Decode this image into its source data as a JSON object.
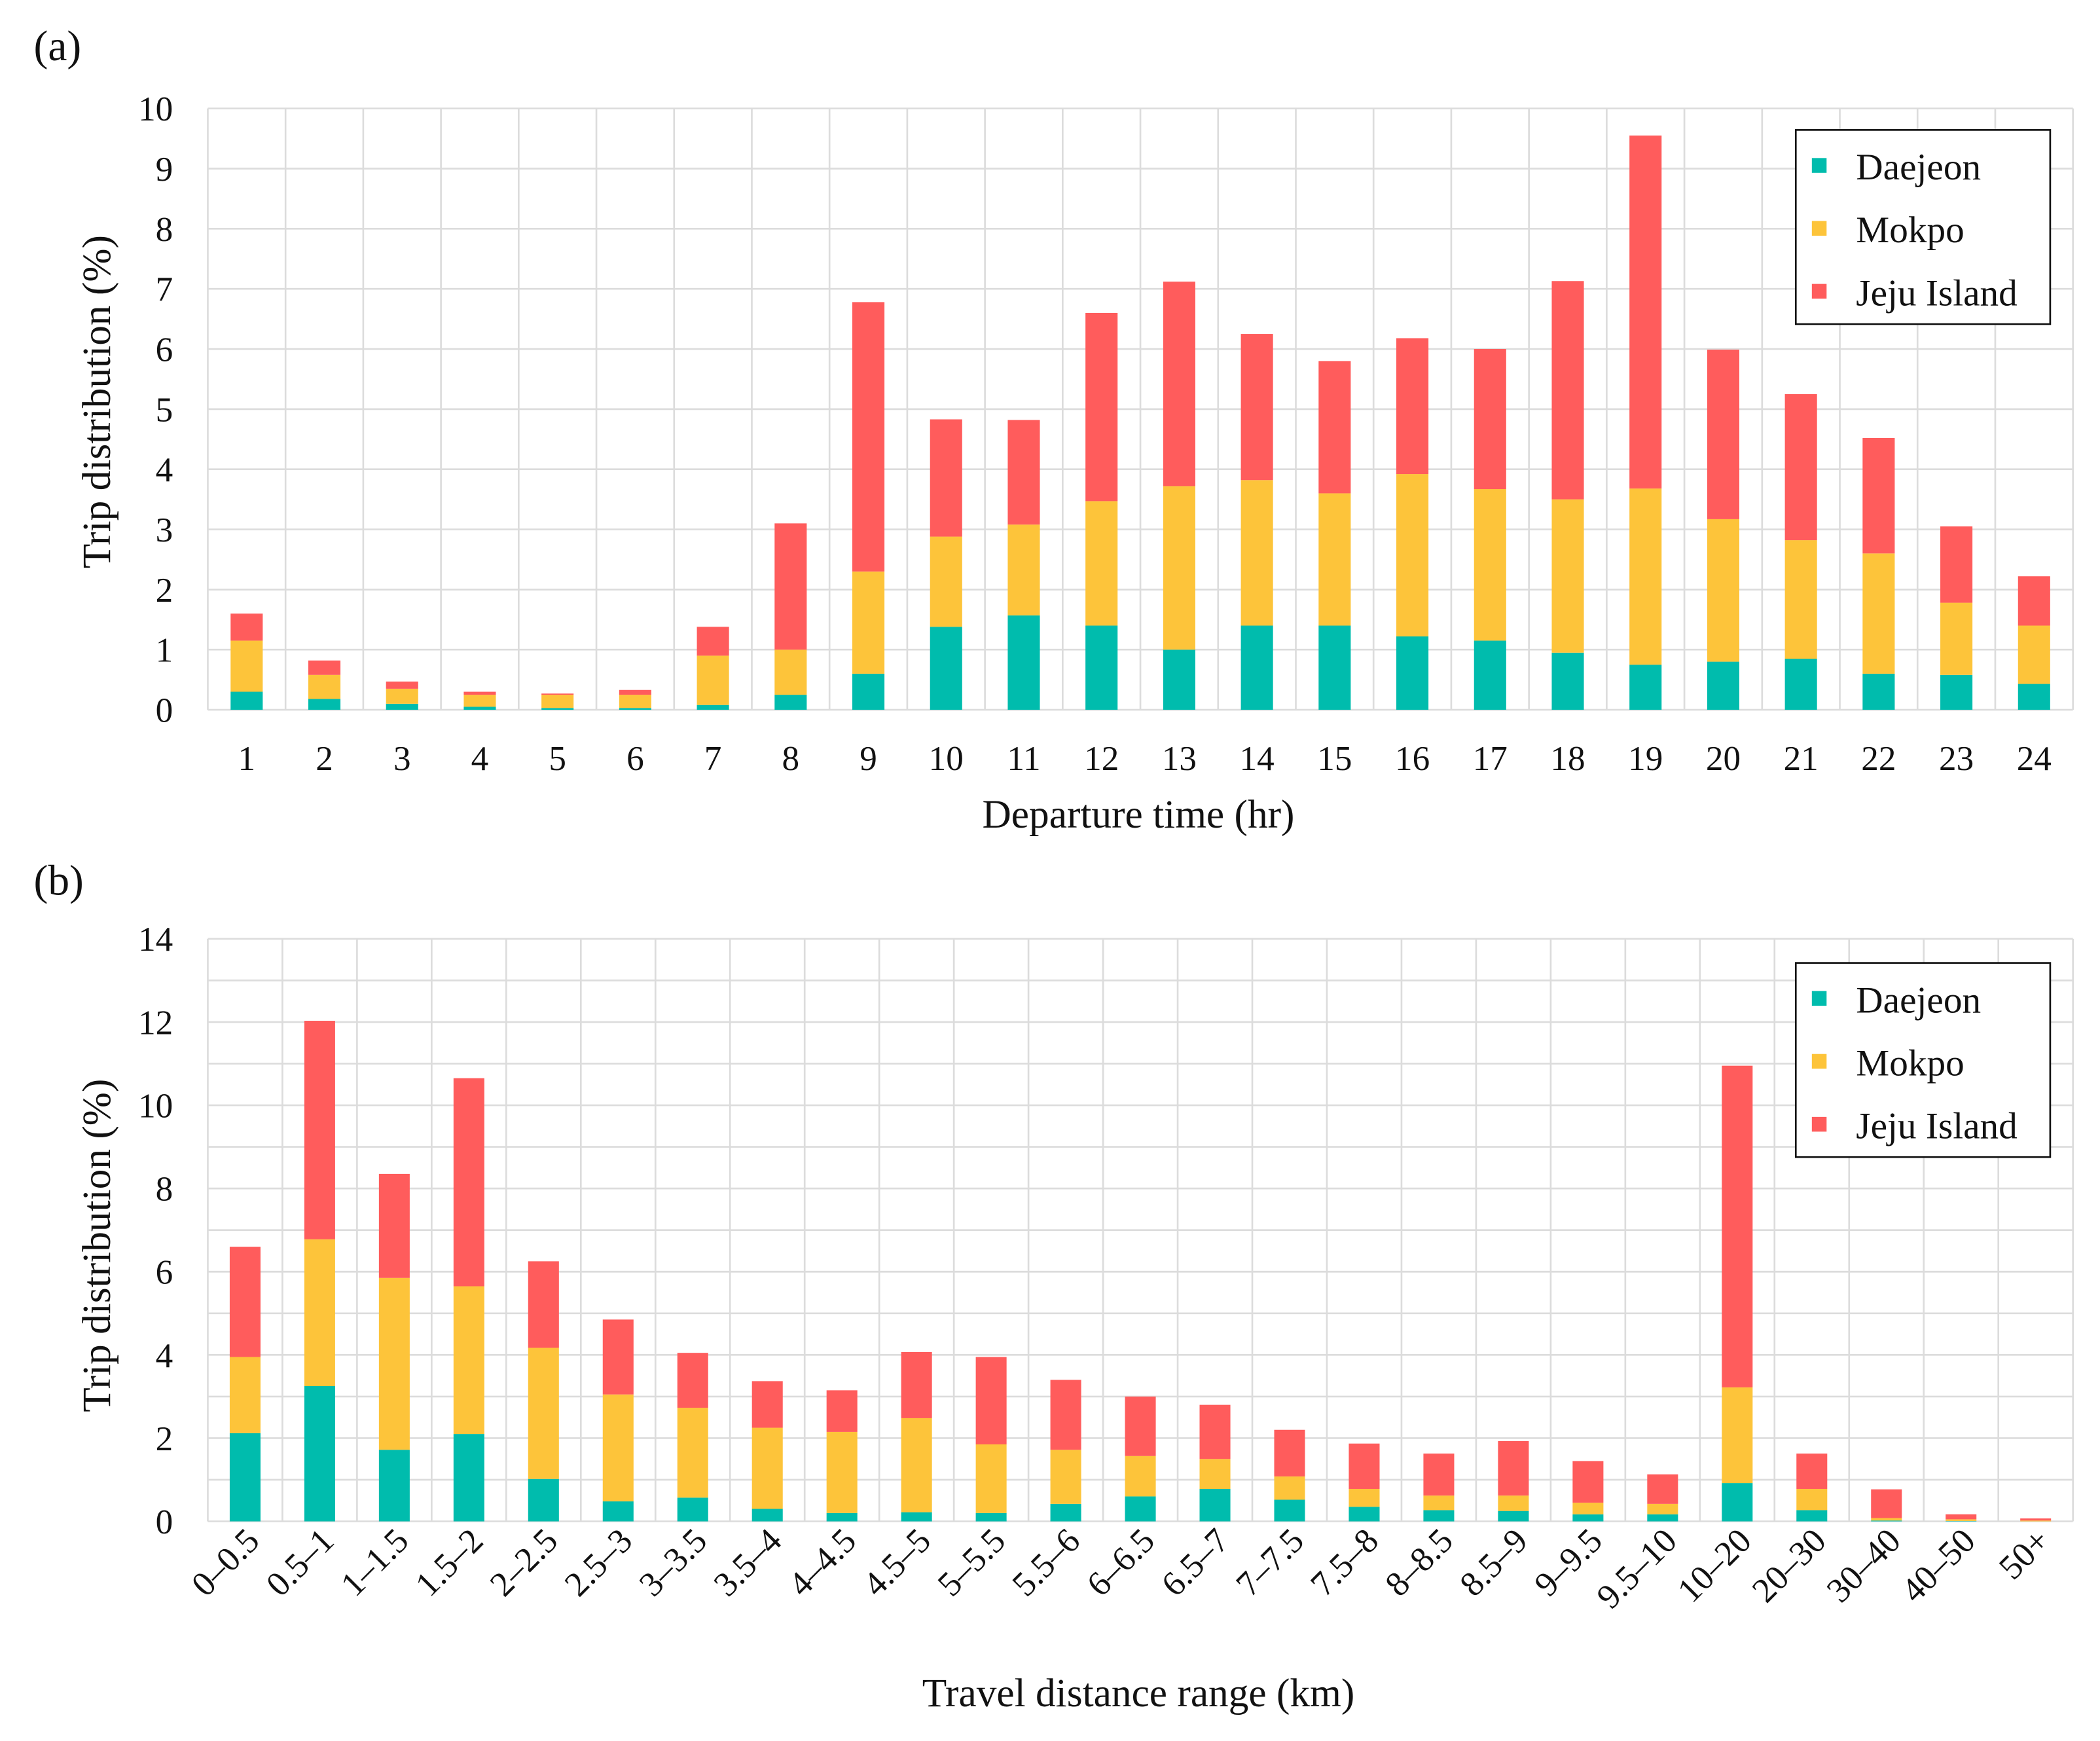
{
  "colors": {
    "Daejeon": "#00bcad",
    "Mokpo": "#fdc43a",
    "Jeju Island": "#ff5c5c"
  },
  "chart_data": [
    {
      "type": "bar",
      "stacked": true,
      "panel_label": "(a)",
      "title": "",
      "xlabel": "Departure time (hr)",
      "ylabel": "Trip distribution (%)",
      "ylim": [
        0,
        10
      ],
      "yticks": [
        "0",
        "1",
        "2",
        "3",
        "4",
        "5",
        "6",
        "7",
        "8",
        "9",
        "10"
      ],
      "grid": true,
      "legend_position": "top-right",
      "categories": [
        "1",
        "2",
        "3",
        "4",
        "5",
        "6",
        "7",
        "8",
        "9",
        "10",
        "11",
        "12",
        "13",
        "14",
        "15",
        "16",
        "17",
        "18",
        "19",
        "20",
        "21",
        "22",
        "23",
        "24"
      ],
      "series": [
        {
          "name": "Daejeon",
          "values": [
            0.3,
            0.18,
            0.1,
            0.05,
            0.03,
            0.03,
            0.08,
            0.25,
            0.6,
            1.38,
            1.57,
            1.4,
            1.0,
            1.4,
            1.4,
            1.22,
            1.15,
            0.95,
            0.75,
            0.8,
            0.85,
            0.6,
            0.58,
            0.43
          ]
        },
        {
          "name": "Mokpo",
          "values": [
            0.85,
            0.4,
            0.25,
            0.2,
            0.22,
            0.22,
            0.82,
            0.75,
            1.7,
            1.5,
            1.51,
            2.07,
            2.72,
            2.42,
            2.2,
            2.7,
            2.52,
            2.55,
            2.93,
            2.37,
            1.97,
            2.0,
            1.2,
            0.97
          ]
        },
        {
          "name": "Jeju Island",
          "values": [
            0.45,
            0.24,
            0.12,
            0.05,
            0.02,
            0.08,
            0.48,
            2.1,
            4.48,
            1.95,
            1.74,
            3.13,
            3.4,
            2.43,
            2.2,
            2.26,
            2.33,
            3.63,
            5.87,
            2.82,
            2.43,
            1.92,
            1.27,
            0.82
          ]
        }
      ]
    },
    {
      "type": "bar",
      "stacked": true,
      "panel_label": "(b)",
      "title": "",
      "xlabel": "Travel distance range (km)",
      "ylabel": "Trip distribution (%)",
      "ylim": [
        0,
        14
      ],
      "yticks": [
        "0",
        "2",
        "4",
        "6",
        "8",
        "10",
        "12",
        "14"
      ],
      "grid": true,
      "legend_position": "top-right",
      "categories": [
        "0–0.5",
        "0.5–1",
        "1–1.5",
        "1.5–2",
        "2–2.5",
        "2.5–3",
        "3–3.5",
        "3.5–4",
        "4–4.5",
        "4.5–5",
        "5–5.5",
        "5.5–6",
        "6–6.5",
        "6.5–7",
        "7–7.5",
        "7.5–8",
        "8–8.5",
        "8.5–9",
        "9–9.5",
        "9.5–10",
        "10–20",
        "20–30",
        "30–40",
        "40–50",
        "50+"
      ],
      "series": [
        {
          "name": "Daejeon",
          "values": [
            2.12,
            3.25,
            1.72,
            2.1,
            1.02,
            0.48,
            0.57,
            0.3,
            0.2,
            0.22,
            0.2,
            0.42,
            0.6,
            0.78,
            0.52,
            0.35,
            0.27,
            0.25,
            0.17,
            0.17,
            0.92,
            0.27,
            0.02,
            0.01,
            0
          ]
        },
        {
          "name": "Mokpo",
          "values": [
            1.83,
            3.53,
            4.13,
            3.55,
            3.15,
            2.57,
            2.16,
            1.95,
            1.95,
            2.26,
            1.65,
            1.3,
            0.97,
            0.72,
            0.56,
            0.43,
            0.35,
            0.37,
            0.28,
            0.25,
            2.3,
            0.51,
            0.06,
            0.04,
            0.02
          ]
        },
        {
          "name": "Jeju Island",
          "values": [
            2.65,
            5.25,
            2.5,
            5.0,
            2.08,
            1.8,
            1.32,
            1.12,
            1.0,
            1.59,
            2.1,
            1.68,
            1.43,
            1.3,
            1.12,
            1.09,
            1.01,
            1.31,
            1.0,
            0.71,
            7.73,
            0.85,
            0.69,
            0.12,
            0.05
          ]
        }
      ]
    }
  ]
}
